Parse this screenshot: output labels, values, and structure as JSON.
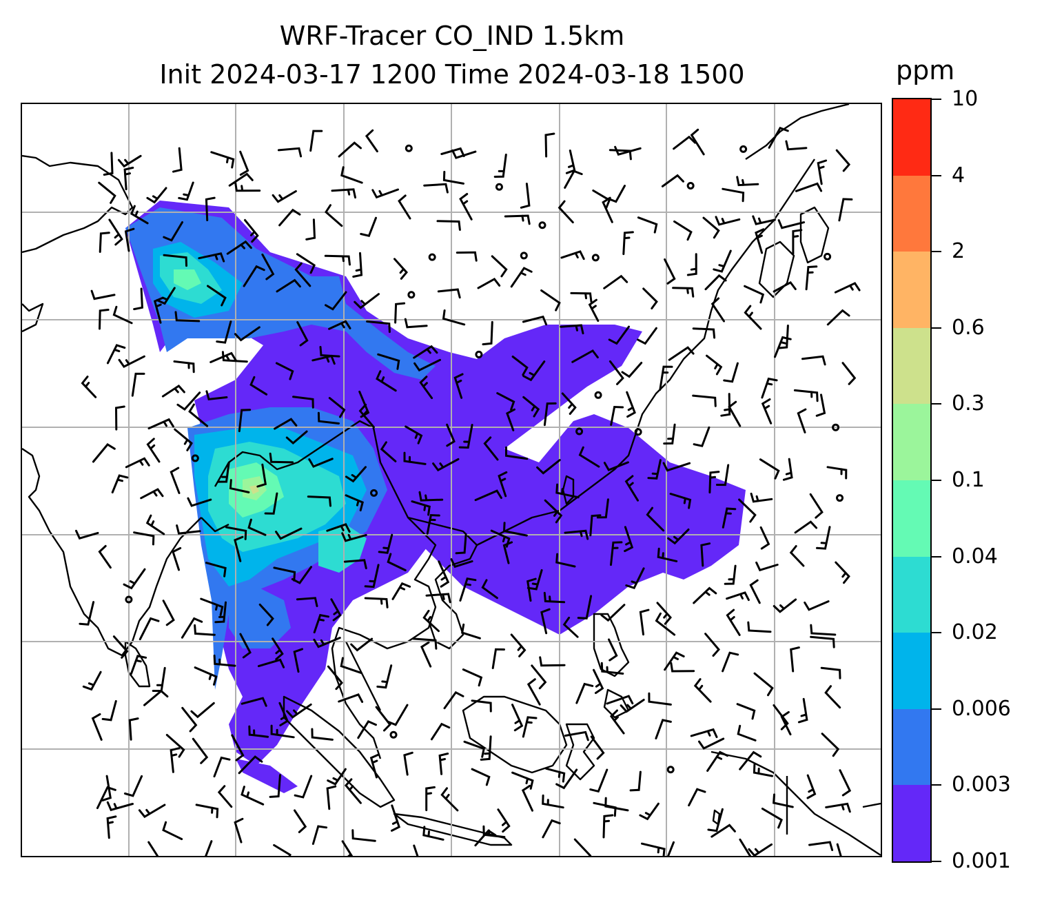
{
  "title": {
    "line1": "WRF-Tracer CO_IND 1.5km",
    "line2": "Init 2024-03-17 1200 Time 2024-03-18 1500"
  },
  "colorbar": {
    "unit": "ppm",
    "levels": [
      "0.001",
      "0.003",
      "0.006",
      "0.02",
      "0.04",
      "0.1",
      "0.3",
      "0.6",
      "2",
      "4",
      "10"
    ],
    "colors": [
      "#6428f8",
      "#3278f0",
      "#00b4eb",
      "#2ddcd2",
      "#64fab4",
      "#9bf59b",
      "#cde18c",
      "#ffb464",
      "#ff783c",
      "#ff2a14"
    ]
  },
  "map": {
    "layers": [
      "coastlines",
      "country-borders",
      "gridlines",
      "tracer-concentration-fill",
      "wind-barbs"
    ],
    "gridline_color": "#b0b0b0",
    "coastline_color": "#000000"
  }
}
